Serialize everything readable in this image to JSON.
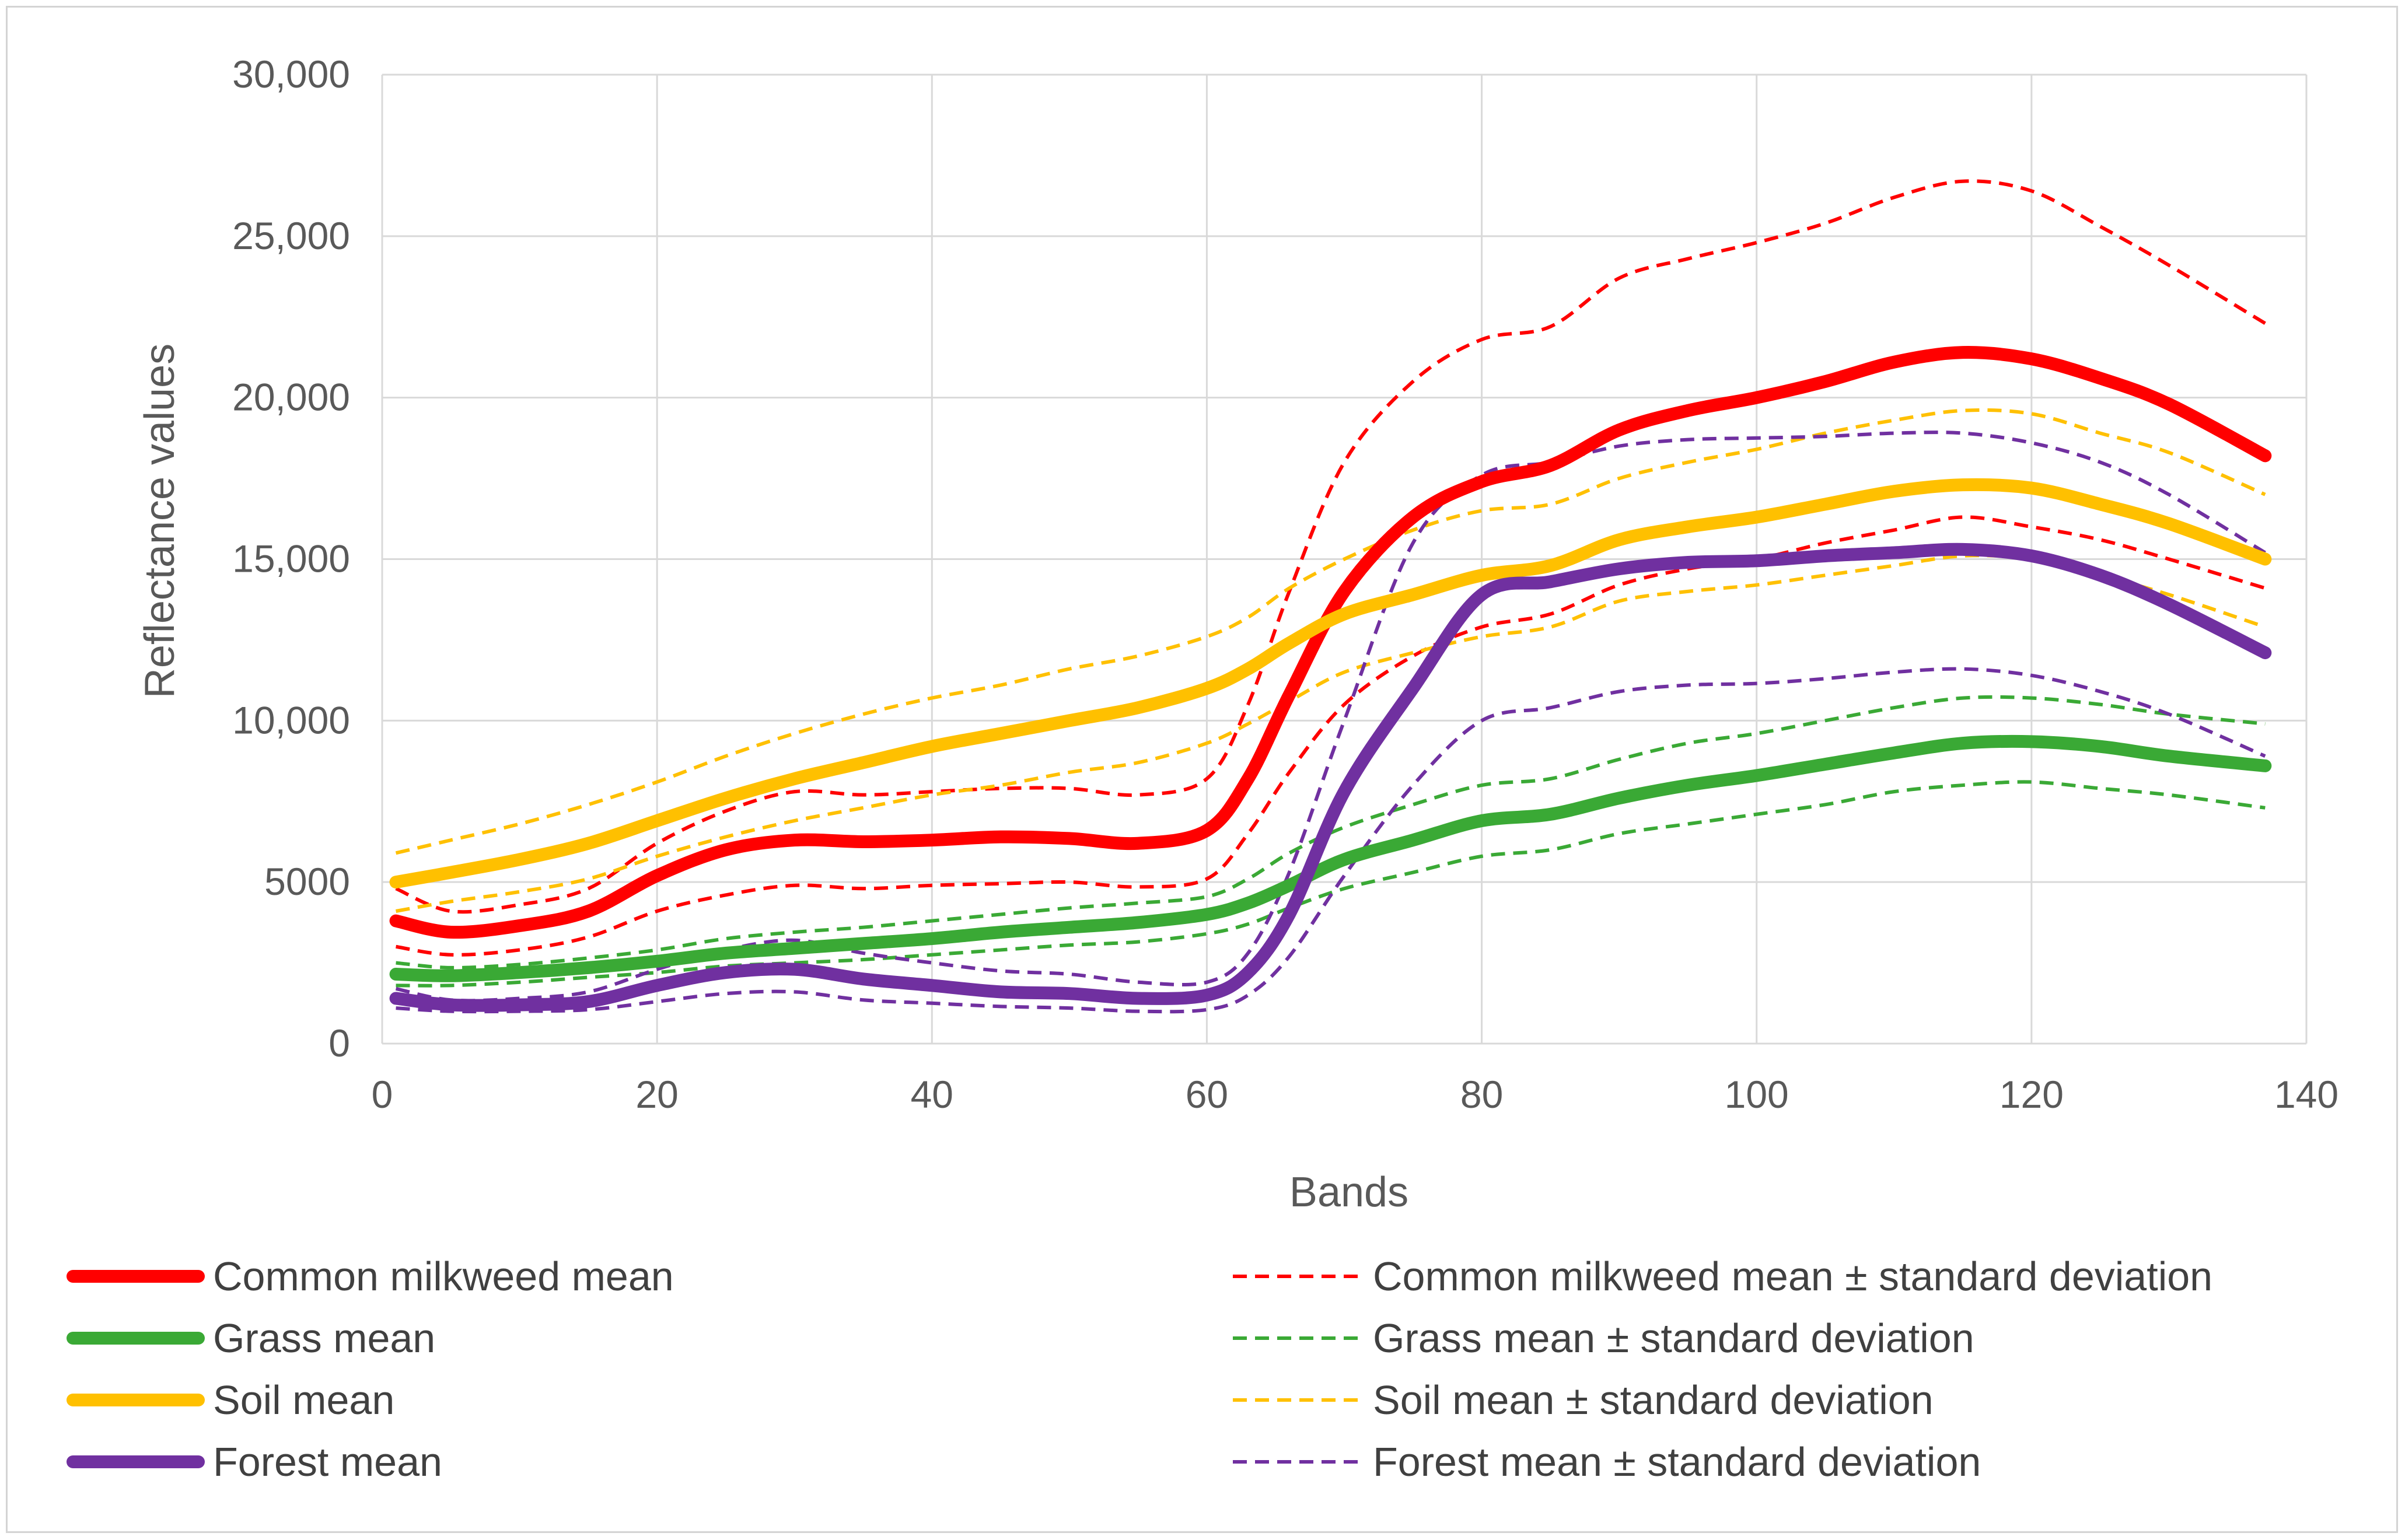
{
  "chart_data": {
    "type": "line",
    "title": "",
    "xlabel": "Bands",
    "ylabel": "Reflectance values",
    "xlim": [
      0,
      140
    ],
    "ylim": [
      0,
      30000
    ],
    "x_ticks": [
      0,
      20,
      40,
      60,
      80,
      100,
      120,
      140
    ],
    "x_tick_labels": [
      "0",
      "20",
      "40",
      "60",
      "80",
      "100",
      "120",
      "140"
    ],
    "y_ticks": [
      0,
      5000,
      10000,
      15000,
      20000,
      25000,
      30000
    ],
    "y_tick_labels": [
      "0",
      "5000",
      "10,000",
      "15,000",
      "20,000",
      "25,000",
      "30,000"
    ],
    "grid": true,
    "legend_position": "bottom",
    "x": [
      1,
      5,
      10,
      15,
      20,
      25,
      30,
      35,
      40,
      45,
      50,
      55,
      60,
      63,
      66,
      70,
      75,
      80,
      85,
      90,
      95,
      100,
      105,
      110,
      115,
      120,
      125,
      130,
      137
    ],
    "series": [
      {
        "name": "Common milkweed mean",
        "style": "solid",
        "color": "#ff0000",
        "values": [
          3800,
          3450,
          3650,
          4100,
          5200,
          6000,
          6300,
          6250,
          6300,
          6400,
          6350,
          6200,
          6600,
          8200,
          10800,
          14000,
          16300,
          17400,
          17900,
          19000,
          19600,
          20000,
          20500,
          21100,
          21400,
          21200,
          20600,
          19800,
          18200
        ]
      },
      {
        "name": "Common milkweed mean ± standard deviation",
        "style": "dashed",
        "color": "#ff0000",
        "values": [
          4800,
          4100,
          4300,
          4800,
          6200,
          7200,
          7800,
          7700,
          7800,
          7900,
          7900,
          7700,
          8200,
          10500,
          14000,
          18000,
          20500,
          21800,
          22200,
          23700,
          24300,
          24800,
          25400,
          26200,
          26700,
          26400,
          25300,
          24100,
          22300
        ]
      },
      {
        "name": "Common milkweed mean - standard deviation",
        "style": "dashed",
        "color": "#ff0000",
        "values": [
          3000,
          2750,
          2900,
          3300,
          4100,
          4600,
          4900,
          4800,
          4900,
          4950,
          5000,
          4850,
          5100,
          6500,
          8400,
          10500,
          12000,
          12900,
          13300,
          14200,
          14700,
          15000,
          15500,
          15900,
          16300,
          16000,
          15600,
          15000,
          14100
        ]
      },
      {
        "name": "Grass mean",
        "style": "solid",
        "color": "#3aa935",
        "values": [
          2150,
          2100,
          2200,
          2350,
          2550,
          2800,
          2950,
          3100,
          3250,
          3450,
          3600,
          3750,
          4000,
          4350,
          4900,
          5700,
          6300,
          6900,
          7100,
          7600,
          8000,
          8300,
          8650,
          9000,
          9300,
          9350,
          9200,
          8900,
          8600
        ]
      },
      {
        "name": "Grass mean ± standard deviation",
        "style": "dashed",
        "color": "#3aa935",
        "values": [
          2500,
          2350,
          2450,
          2650,
          2900,
          3250,
          3450,
          3600,
          3800,
          4000,
          4200,
          4350,
          4550,
          5100,
          5900,
          6700,
          7400,
          8000,
          8200,
          8800,
          9300,
          9600,
          10000,
          10400,
          10700,
          10700,
          10500,
          10200,
          9900
        ]
      },
      {
        "name": "Grass mean - standard deviation",
        "style": "dashed",
        "color": "#3aa935",
        "values": [
          1800,
          1800,
          1900,
          2050,
          2200,
          2400,
          2500,
          2600,
          2750,
          2900,
          3050,
          3150,
          3400,
          3700,
          4200,
          4800,
          5300,
          5800,
          6000,
          6500,
          6800,
          7100,
          7400,
          7800,
          8000,
          8100,
          7900,
          7700,
          7300
        ]
      },
      {
        "name": "Soil mean",
        "style": "solid",
        "color": "#ffc000",
        "values": [
          5000,
          5300,
          5700,
          6200,
          6900,
          7600,
          8200,
          8700,
          9200,
          9600,
          10000,
          10400,
          11000,
          11600,
          12400,
          13300,
          13900,
          14500,
          14800,
          15600,
          16000,
          16300,
          16700,
          17100,
          17300,
          17200,
          16700,
          16100,
          15000
        ]
      },
      {
        "name": "Soil mean ± standard deviation",
        "style": "dashed",
        "color": "#ffc000",
        "values": [
          5900,
          6300,
          6800,
          7400,
          8100,
          8900,
          9600,
          10200,
          10700,
          11100,
          11600,
          12000,
          12600,
          13200,
          14100,
          15000,
          15900,
          16500,
          16700,
          17500,
          18000,
          18400,
          18900,
          19300,
          19600,
          19500,
          18900,
          18300,
          17000
        ]
      },
      {
        "name": "Soil mean - standard deviation",
        "style": "dashed",
        "color": "#ffc000",
        "values": [
          4100,
          4400,
          4700,
          5100,
          5800,
          6400,
          6900,
          7300,
          7700,
          8000,
          8400,
          8700,
          9300,
          9900,
          10600,
          11500,
          12100,
          12600,
          12900,
          13700,
          14000,
          14200,
          14500,
          14800,
          15100,
          15000,
          14500,
          13900,
          12900
        ]
      },
      {
        "name": "Forest mean",
        "style": "solid",
        "color": "#7030a0",
        "values": [
          1400,
          1200,
          1200,
          1300,
          1800,
          2200,
          2300,
          2000,
          1800,
          1600,
          1550,
          1400,
          1500,
          2200,
          4000,
          7800,
          11000,
          13900,
          14300,
          14700,
          14900,
          14950,
          15100,
          15200,
          15300,
          15100,
          14500,
          13600,
          12100
        ]
      },
      {
        "name": "Forest mean ± standard deviation",
        "style": "dashed",
        "color": "#7030a0",
        "values": [
          1700,
          1350,
          1400,
          1600,
          2300,
          2900,
          3200,
          2800,
          2500,
          2250,
          2150,
          1900,
          1900,
          2800,
          5300,
          10000,
          15500,
          17600,
          18000,
          18500,
          18700,
          18750,
          18800,
          18900,
          18900,
          18600,
          18000,
          17000,
          15200
        ]
      },
      {
        "name": "Forest mean - standard deviation",
        "style": "dashed",
        "color": "#7030a0",
        "values": [
          1100,
          1000,
          1000,
          1050,
          1300,
          1550,
          1600,
          1350,
          1250,
          1150,
          1100,
          1000,
          1050,
          1500,
          2700,
          5200,
          8000,
          10000,
          10400,
          10900,
          11100,
          11150,
          11300,
          11500,
          11600,
          11400,
          10900,
          10200,
          8900
        ]
      }
    ],
    "legend": [
      {
        "label": "Common milkweed mean",
        "style": "solid",
        "color": "#ff0000"
      },
      {
        "label": "Grass mean",
        "style": "solid",
        "color": "#3aa935"
      },
      {
        "label": "Soil mean",
        "style": "solid",
        "color": "#ffc000"
      },
      {
        "label": "Forest mean",
        "style": "solid",
        "color": "#7030a0"
      },
      {
        "label": "Common milkweed mean ± standard deviation",
        "style": "dashed",
        "color": "#ff0000"
      },
      {
        "label": "Grass mean ± standard deviation",
        "style": "dashed",
        "color": "#3aa935"
      },
      {
        "label": "Soil mean ± standard deviation",
        "style": "dashed",
        "color": "#ffc000"
      },
      {
        "label": "Forest mean ± standard deviation",
        "style": "dashed",
        "color": "#7030a0"
      }
    ]
  }
}
